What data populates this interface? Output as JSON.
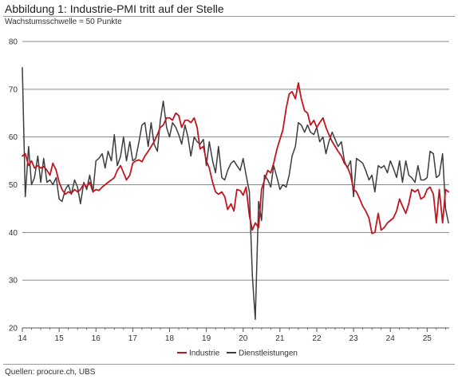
{
  "header": {
    "title": "Abbildung 1: Industrie-PMI tritt auf der Stelle",
    "subtitle": "Wachstumsschwelle = 50 Punkte"
  },
  "footer": {
    "source": "Quellen: procure.ch, UBS"
  },
  "colors": {
    "industrie": "#c0161f",
    "dienstleistungen": "#3d3d3d",
    "grid": "#8a8a8a",
    "axis": "#555555"
  },
  "chart_data": {
    "type": "line",
    "title": "Abbildung 1: Industrie-PMI tritt auf der Stelle",
    "subtitle": "Wachstumsschwelle = 50 Punkte",
    "xlabel": "",
    "ylabel": "",
    "xlim": [
      2014,
      2025.6
    ],
    "ylim": [
      20,
      80
    ],
    "y_ticks": [
      20,
      30,
      40,
      50,
      60,
      70,
      80
    ],
    "x_ticks": [
      2014,
      2015,
      2016,
      2017,
      2018,
      2019,
      2020,
      2021,
      2022,
      2023,
      2024,
      2025
    ],
    "x_tick_labels": [
      "14",
      "15",
      "16",
      "17",
      "18",
      "19",
      "20",
      "21",
      "22",
      "23",
      "24",
      "25"
    ],
    "grid": "horizontal",
    "legend_position": "bottom-center",
    "series": [
      {
        "name": "Industrie",
        "color": "#c0161f",
        "points": [
          [
            2014.0,
            56.0
          ],
          [
            2014.08,
            56.5
          ],
          [
            2014.17,
            54.0
          ],
          [
            2014.25,
            55.0
          ],
          [
            2014.33,
            53.5
          ],
          [
            2014.42,
            54.0
          ],
          [
            2014.5,
            53.5
          ],
          [
            2014.58,
            53.8
          ],
          [
            2014.67,
            53.0
          ],
          [
            2014.75,
            52.0
          ],
          [
            2014.83,
            54.5
          ],
          [
            2014.92,
            53.0
          ],
          [
            2015.0,
            50.5
          ],
          [
            2015.08,
            49.0
          ],
          [
            2015.17,
            48.0
          ],
          [
            2015.25,
            48.5
          ],
          [
            2015.33,
            48.2
          ],
          [
            2015.42,
            49.0
          ],
          [
            2015.5,
            48.5
          ],
          [
            2015.58,
            49.0
          ],
          [
            2015.67,
            50.2
          ],
          [
            2015.75,
            49.5
          ],
          [
            2015.83,
            50.5
          ],
          [
            2015.92,
            48.5
          ],
          [
            2016.0,
            49.0
          ],
          [
            2016.08,
            48.8
          ],
          [
            2016.17,
            49.5
          ],
          [
            2016.25,
            50.0
          ],
          [
            2016.33,
            50.5
          ],
          [
            2016.42,
            51.0
          ],
          [
            2016.5,
            51.5
          ],
          [
            2016.58,
            53.0
          ],
          [
            2016.67,
            54.0
          ],
          [
            2016.75,
            52.5
          ],
          [
            2016.83,
            51.0
          ],
          [
            2016.92,
            52.0
          ],
          [
            2017.0,
            54.5
          ],
          [
            2017.08,
            55.0
          ],
          [
            2017.17,
            55.2
          ],
          [
            2017.25,
            54.8
          ],
          [
            2017.33,
            56.0
          ],
          [
            2017.42,
            57.0
          ],
          [
            2017.5,
            58.0
          ],
          [
            2017.58,
            59.0
          ],
          [
            2017.67,
            60.5
          ],
          [
            2017.75,
            62.0
          ],
          [
            2017.83,
            62.5
          ],
          [
            2017.92,
            64.0
          ],
          [
            2018.0,
            64.0
          ],
          [
            2018.08,
            63.5
          ],
          [
            2018.17,
            65.0
          ],
          [
            2018.25,
            64.5
          ],
          [
            2018.33,
            62.0
          ],
          [
            2018.42,
            63.5
          ],
          [
            2018.5,
            63.5
          ],
          [
            2018.58,
            63.0
          ],
          [
            2018.67,
            64.0
          ],
          [
            2018.75,
            62.0
          ],
          [
            2018.83,
            57.5
          ],
          [
            2018.92,
            58.0
          ],
          [
            2019.0,
            55.0
          ],
          [
            2019.08,
            53.5
          ],
          [
            2019.17,
            50.5
          ],
          [
            2019.25,
            48.5
          ],
          [
            2019.33,
            48.0
          ],
          [
            2019.42,
            48.5
          ],
          [
            2019.5,
            47.5
          ],
          [
            2019.58,
            44.8
          ],
          [
            2019.67,
            46.0
          ],
          [
            2019.75,
            44.5
          ],
          [
            2019.83,
            49.0
          ],
          [
            2019.92,
            48.8
          ],
          [
            2020.0,
            47.8
          ],
          [
            2020.08,
            49.5
          ],
          [
            2020.17,
            43.5
          ],
          [
            2020.25,
            40.5
          ],
          [
            2020.33,
            42.0
          ],
          [
            2020.42,
            41.0
          ],
          [
            2020.5,
            49.0
          ],
          [
            2020.58,
            51.0
          ],
          [
            2020.67,
            53.0
          ],
          [
            2020.75,
            52.5
          ],
          [
            2020.83,
            54.5
          ],
          [
            2020.92,
            57.5
          ],
          [
            2021.0,
            59.5
          ],
          [
            2021.08,
            61.5
          ],
          [
            2021.17,
            66.0
          ],
          [
            2021.25,
            69.0
          ],
          [
            2021.33,
            69.5
          ],
          [
            2021.42,
            68.0
          ],
          [
            2021.5,
            71.3
          ],
          [
            2021.58,
            68.0
          ],
          [
            2021.67,
            65.5
          ],
          [
            2021.75,
            65.0
          ],
          [
            2021.83,
            62.5
          ],
          [
            2021.92,
            63.5
          ],
          [
            2022.0,
            62.0
          ],
          [
            2022.08,
            63.0
          ],
          [
            2022.17,
            64.0
          ],
          [
            2022.25,
            62.0
          ],
          [
            2022.33,
            60.5
          ],
          [
            2022.42,
            59.0
          ],
          [
            2022.5,
            58.0
          ],
          [
            2022.58,
            57.0
          ],
          [
            2022.67,
            56.0
          ],
          [
            2022.75,
            54.5
          ],
          [
            2022.83,
            53.8
          ],
          [
            2022.92,
            52.0
          ],
          [
            2023.0,
            49.0
          ],
          [
            2023.08,
            48.5
          ],
          [
            2023.17,
            47.0
          ],
          [
            2023.25,
            45.5
          ],
          [
            2023.33,
            44.5
          ],
          [
            2023.42,
            43.0
          ],
          [
            2023.5,
            39.8
          ],
          [
            2023.58,
            40.0
          ],
          [
            2023.67,
            44.0
          ],
          [
            2023.75,
            40.5
          ],
          [
            2023.83,
            41.0
          ],
          [
            2023.92,
            42.0
          ],
          [
            2024.0,
            42.5
          ],
          [
            2024.08,
            43.0
          ],
          [
            2024.17,
            44.5
          ],
          [
            2024.25,
            47.0
          ],
          [
            2024.33,
            45.5
          ],
          [
            2024.42,
            44.0
          ],
          [
            2024.5,
            46.0
          ],
          [
            2024.58,
            49.0
          ],
          [
            2024.67,
            48.5
          ],
          [
            2024.75,
            49.0
          ],
          [
            2024.83,
            47.0
          ],
          [
            2024.92,
            47.5
          ],
          [
            2025.0,
            49.0
          ],
          [
            2025.08,
            49.5
          ],
          [
            2025.17,
            48.0
          ],
          [
            2025.25,
            42.0
          ],
          [
            2025.33,
            49.0
          ],
          [
            2025.42,
            42.0
          ],
          [
            2025.5,
            49.0
          ],
          [
            2025.58,
            48.5
          ]
        ]
      },
      {
        "name": "Dienstleistungen",
        "color": "#3d3d3d",
        "points": [
          [
            2014.0,
            74.5
          ],
          [
            2014.08,
            47.5
          ],
          [
            2014.17,
            58.0
          ],
          [
            2014.25,
            50.0
          ],
          [
            2014.33,
            51.5
          ],
          [
            2014.42,
            56.0
          ],
          [
            2014.5,
            50.5
          ],
          [
            2014.58,
            55.5
          ],
          [
            2014.67,
            50.5
          ],
          [
            2014.75,
            51.0
          ],
          [
            2014.83,
            50.0
          ],
          [
            2014.92,
            51.5
          ],
          [
            2015.0,
            47.0
          ],
          [
            2015.08,
            46.5
          ],
          [
            2015.17,
            49.0
          ],
          [
            2015.25,
            50.0
          ],
          [
            2015.33,
            48.0
          ],
          [
            2015.42,
            51.0
          ],
          [
            2015.5,
            49.5
          ],
          [
            2015.58,
            46.0
          ],
          [
            2015.67,
            50.5
          ],
          [
            2015.75,
            49.0
          ],
          [
            2015.83,
            52.0
          ],
          [
            2015.92,
            48.5
          ],
          [
            2016.0,
            55.0
          ],
          [
            2016.08,
            55.5
          ],
          [
            2016.17,
            56.5
          ],
          [
            2016.25,
            53.5
          ],
          [
            2016.33,
            57.0
          ],
          [
            2016.42,
            55.0
          ],
          [
            2016.5,
            60.5
          ],
          [
            2016.58,
            54.0
          ],
          [
            2016.67,
            56.0
          ],
          [
            2016.75,
            60.0
          ],
          [
            2016.83,
            55.0
          ],
          [
            2016.92,
            59.0
          ],
          [
            2017.0,
            55.0
          ],
          [
            2017.08,
            55.5
          ],
          [
            2017.17,
            59.0
          ],
          [
            2017.25,
            62.5
          ],
          [
            2017.33,
            63.0
          ],
          [
            2017.42,
            58.0
          ],
          [
            2017.5,
            63.0
          ],
          [
            2017.58,
            58.5
          ],
          [
            2017.67,
            57.0
          ],
          [
            2017.75,
            63.5
          ],
          [
            2017.83,
            67.5
          ],
          [
            2017.92,
            62.0
          ],
          [
            2018.0,
            60.0
          ],
          [
            2018.08,
            63.0
          ],
          [
            2018.17,
            62.0
          ],
          [
            2018.25,
            60.5
          ],
          [
            2018.33,
            58.5
          ],
          [
            2018.42,
            62.5
          ],
          [
            2018.5,
            60.0
          ],
          [
            2018.58,
            56.0
          ],
          [
            2018.67,
            60.0
          ],
          [
            2018.75,
            59.0
          ],
          [
            2018.83,
            58.5
          ],
          [
            2018.92,
            59.5
          ],
          [
            2019.0,
            54.0
          ],
          [
            2019.08,
            59.0
          ],
          [
            2019.17,
            55.0
          ],
          [
            2019.25,
            52.5
          ],
          [
            2019.33,
            58.0
          ],
          [
            2019.42,
            51.5
          ],
          [
            2019.5,
            51.0
          ],
          [
            2019.58,
            53.0
          ],
          [
            2019.67,
            54.5
          ],
          [
            2019.75,
            55.0
          ],
          [
            2019.83,
            54.0
          ],
          [
            2019.92,
            53.0
          ],
          [
            2020.0,
            55.5
          ],
          [
            2020.08,
            52.0
          ],
          [
            2020.17,
            48.5
          ],
          [
            2020.25,
            31.0
          ],
          [
            2020.33,
            21.8
          ],
          [
            2020.42,
            46.5
          ],
          [
            2020.5,
            42.5
          ],
          [
            2020.58,
            52.0
          ],
          [
            2020.67,
            51.0
          ],
          [
            2020.75,
            49.5
          ],
          [
            2020.83,
            54.0
          ],
          [
            2020.92,
            51.5
          ],
          [
            2021.0,
            49.0
          ],
          [
            2021.08,
            50.0
          ],
          [
            2021.17,
            49.5
          ],
          [
            2021.25,
            52.0
          ],
          [
            2021.33,
            56.0
          ],
          [
            2021.42,
            58.0
          ],
          [
            2021.5,
            63.0
          ],
          [
            2021.58,
            62.5
          ],
          [
            2021.67,
            61.0
          ],
          [
            2021.75,
            62.5
          ],
          [
            2021.83,
            61.0
          ],
          [
            2021.92,
            60.5
          ],
          [
            2022.0,
            62.0
          ],
          [
            2022.08,
            59.0
          ],
          [
            2022.17,
            60.0
          ],
          [
            2022.25,
            56.5
          ],
          [
            2022.33,
            59.0
          ],
          [
            2022.42,
            61.0
          ],
          [
            2022.5,
            59.5
          ],
          [
            2022.58,
            58.0
          ],
          [
            2022.67,
            59.0
          ],
          [
            2022.75,
            55.0
          ],
          [
            2022.83,
            53.5
          ],
          [
            2022.92,
            55.0
          ],
          [
            2023.0,
            47.5
          ],
          [
            2023.08,
            55.5
          ],
          [
            2023.17,
            55.0
          ],
          [
            2023.25,
            54.5
          ],
          [
            2023.33,
            53.0
          ],
          [
            2023.42,
            51.0
          ],
          [
            2023.5,
            52.0
          ],
          [
            2023.58,
            48.5
          ],
          [
            2023.67,
            54.0
          ],
          [
            2023.75,
            53.5
          ],
          [
            2023.83,
            54.0
          ],
          [
            2023.92,
            52.5
          ],
          [
            2024.0,
            55.0
          ],
          [
            2024.08,
            53.5
          ],
          [
            2024.17,
            51.5
          ],
          [
            2024.25,
            55.0
          ],
          [
            2024.33,
            50.5
          ],
          [
            2024.42,
            55.0
          ],
          [
            2024.5,
            52.0
          ],
          [
            2024.58,
            51.5
          ],
          [
            2024.67,
            50.5
          ],
          [
            2024.75,
            54.0
          ],
          [
            2024.83,
            51.0
          ],
          [
            2024.92,
            51.0
          ],
          [
            2025.0,
            51.5
          ],
          [
            2025.08,
            57.0
          ],
          [
            2025.17,
            56.5
          ],
          [
            2025.25,
            51.5
          ],
          [
            2025.33,
            52.0
          ],
          [
            2025.42,
            56.5
          ],
          [
            2025.5,
            45.0
          ],
          [
            2025.58,
            42.0
          ]
        ]
      }
    ]
  }
}
